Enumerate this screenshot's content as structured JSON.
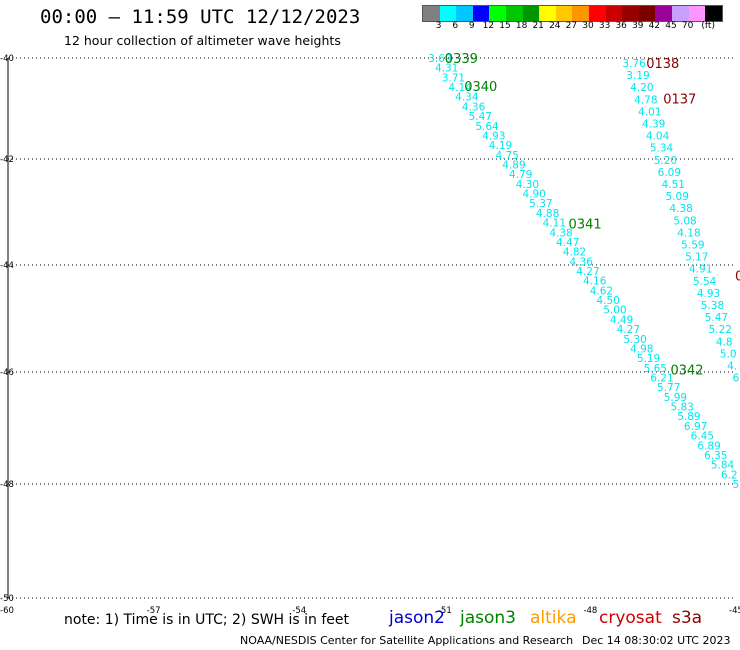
{
  "header": {
    "title": "00:00 – 11:59 UTC 12/12/2023",
    "subtitle": "12 hour collection of altimeter wave heights"
  },
  "colorbar": {
    "colors": [
      "#808080",
      "#00ffff",
      "#00c8ff",
      "#0000ff",
      "#00ff00",
      "#00c800",
      "#009600",
      "#ffff00",
      "#ffc800",
      "#ff9600",
      "#ff0000",
      "#c80000",
      "#960000",
      "#7a0000",
      "#9a009a",
      "#c8a0ff",
      "#ff96ff",
      "#000000"
    ],
    "labels": [
      "3",
      "6",
      "9",
      "12",
      "15",
      "18",
      "21",
      "24",
      "27",
      "30",
      "33",
      "36",
      "39",
      "42",
      "45",
      "70",
      "(ft)"
    ]
  },
  "chart_data": {
    "type": "map-track",
    "lon_ticks": [
      -57,
      -54,
      -51,
      -48,
      -45
    ],
    "lon_tick_labels": [
      "-57",
      "-54",
      "-51",
      "-48",
      "-45"
    ],
    "lat_ticks": [
      -40,
      -42,
      -44,
      -46,
      -48,
      -50
    ],
    "lat_tick_labels": [
      "-40",
      "-42",
      "-44",
      "-46",
      "-48",
      "-50"
    ],
    "corner_label": "-60",
    "colors": {
      "track_values": "#00e5ee",
      "jason3": "#008000",
      "cryosat": "#8b0000"
    },
    "tracks": [
      {
        "satellite": "jason3",
        "values": [
          "3.69",
          "4.31",
          "3.71",
          "4.14",
          "4.34",
          "4.36",
          "5.47",
          "5.64",
          "4.93",
          "4.19",
          "4.75",
          "4.89",
          "4.79",
          "4.30",
          "4.90",
          "5.37",
          "4.88",
          "4.11",
          "4.38",
          "4.47",
          "4.82",
          "4.36",
          "4.27",
          "4.16",
          "4.62",
          "4.50",
          "5.00",
          "4.49",
          "4.27",
          "5.30",
          "4.98",
          "5.19",
          "5.65",
          "6.21",
          "5.77",
          "5.99",
          "5.83",
          "5.89",
          "6.97",
          "6.45",
          "6.89",
          "6.35",
          "5.84",
          "6.2",
          "5"
        ],
        "start": [
          -51.1,
          -40.0
        ],
        "end": [
          -45.0,
          -48.0
        ],
        "time_labels": [
          {
            "text": "0339",
            "at": [
              -51.0,
              -40.0
            ]
          },
          {
            "text": "0340",
            "at": [
              -50.6,
              -40.55
            ]
          },
          {
            "text": "0341",
            "at": [
              -48.45,
              -43.22
            ]
          },
          {
            "text": "0342",
            "at": [
              -46.35,
              -45.95
            ]
          }
        ]
      },
      {
        "satellite": "cryosat",
        "values": [
          "3.76",
          "3.19",
          "4.20",
          "4.78",
          "4.01",
          "4.39",
          "4.04",
          "5.34",
          "5.20",
          "6.09",
          "4.51",
          "5.09",
          "4.38",
          "5.08",
          "4.18",
          "5.59",
          "5.17",
          "4.91",
          "5.54",
          "4.93",
          "5.38",
          "5.47",
          "5.22",
          "4.8",
          "5.0",
          "4.",
          "6"
        ],
        "start": [
          -47.1,
          -40.1
        ],
        "end": [
          -45.0,
          -46.1
        ],
        "time_labels": [
          {
            "text": "0138",
            "at": [
              -46.85,
              -40.1
            ]
          },
          {
            "text": "0137",
            "at": [
              -46.5,
              -40.8
            ]
          },
          {
            "text": "0",
            "at": [
              -45.02,
              -44.2
            ]
          }
        ]
      }
    ]
  },
  "footer": {
    "note": "note: 1) Time is in UTC; 2) SWH is in feet",
    "legend": [
      {
        "name": "jason2",
        "color": "#0000cc"
      },
      {
        "name": "jason3",
        "color": "#008000"
      },
      {
        "name": "altika",
        "color": "#ff9900"
      },
      {
        "name": "cryosat",
        "color": "#cc0000"
      },
      {
        "name": "s3a",
        "color": "#8b0000"
      }
    ],
    "credit": "NOAA/NESDIS Center for Satellite Applications and Research",
    "timestamp": "Dec 14 08:30:02 UTC 2023"
  }
}
